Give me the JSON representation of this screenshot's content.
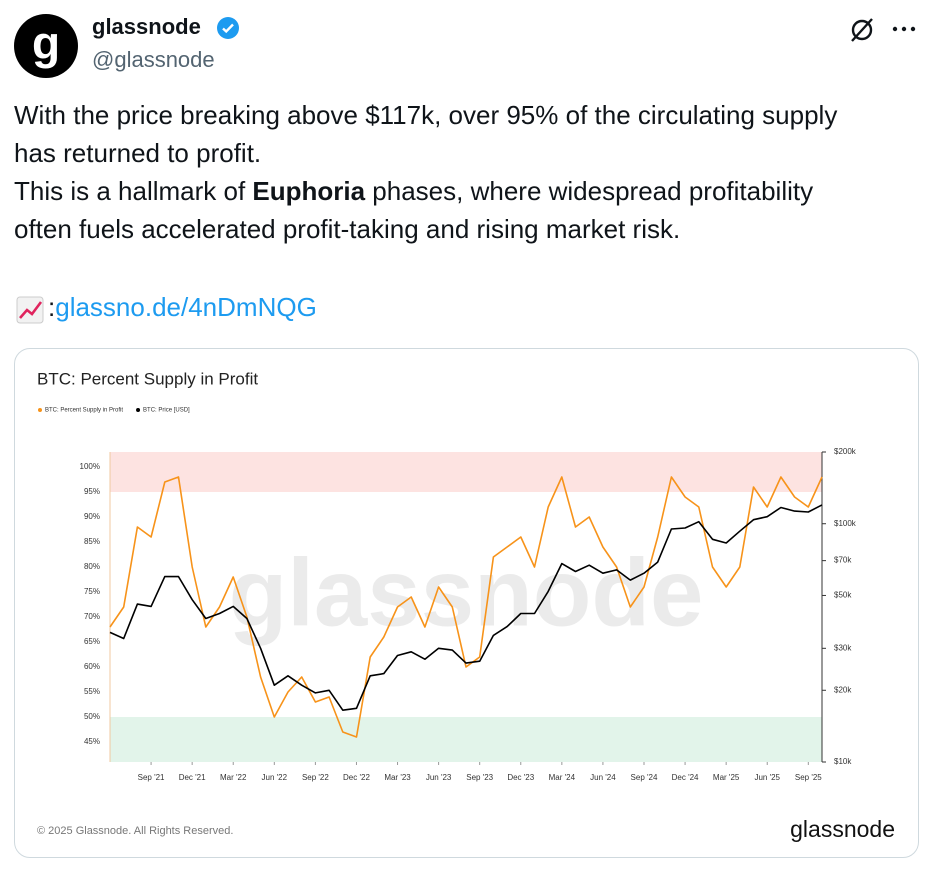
{
  "tweet": {
    "avatar_text": "g",
    "name": "glassnode",
    "handle": "@glassnode",
    "lines": [
      "With the price breaking above $117k, over 95% of the circulating supply",
      "has returned to profit."
    ],
    "line3_before": "This is a hallmark of ",
    "line3_bold": "Euphoria",
    "line3_after": " phases, where widespread profitability",
    "line4": "often fuels accelerated profit-taking and rising market risk.",
    "link_prefix": ":",
    "link": "glassno.de/4nDmNQG"
  },
  "chart_data": {
    "type": "line",
    "title": "BTC: Percent Supply in Profit",
    "watermark": "glassnode",
    "footer": "© 2025 Glassnode. All Rights Reserved.",
    "brand": "glassnode",
    "x": [
      "2021-06",
      "2021-07",
      "2021-08",
      "2021-09",
      "2021-10",
      "2021-11",
      "2021-12",
      "2022-01",
      "2022-02",
      "2022-03",
      "2022-04",
      "2022-05",
      "2022-06",
      "2022-07",
      "2022-08",
      "2022-09",
      "2022-10",
      "2022-11",
      "2022-12",
      "2023-01",
      "2023-02",
      "2023-03",
      "2023-04",
      "2023-05",
      "2023-06",
      "2023-07",
      "2023-08",
      "2023-09",
      "2023-10",
      "2023-11",
      "2023-12",
      "2024-01",
      "2024-02",
      "2024-03",
      "2024-04",
      "2024-05",
      "2024-06",
      "2024-07",
      "2024-08",
      "2024-09",
      "2024-10",
      "2024-11",
      "2024-12",
      "2025-01",
      "2025-02",
      "2025-03",
      "2025-04",
      "2025-05",
      "2025-06",
      "2025-07",
      "2025-08",
      "2025-09",
      "2025-10"
    ],
    "series": [
      {
        "name": "BTC: Percent Supply in Profit",
        "color": "#f7931a",
        "values": [
          68,
          72,
          88,
          86,
          97,
          98,
          80,
          68,
          72,
          78,
          70,
          58,
          50,
          55,
          58,
          53,
          54,
          47,
          46,
          62,
          66,
          72,
          74,
          68,
          76,
          72,
          60,
          62,
          82,
          84,
          86,
          80,
          92,
          98,
          88,
          90,
          84,
          80,
          72,
          76,
          86,
          98,
          94,
          92,
          80,
          76,
          80,
          96,
          92,
          98,
          94,
          92,
          98
        ]
      },
      {
        "name": "BTC: Price [USD]",
        "color": "#000000",
        "axis": "y2",
        "values": [
          35000,
          33000,
          46000,
          45000,
          60000,
          60000,
          48000,
          40000,
          42000,
          45000,
          40000,
          30000,
          21000,
          23000,
          21000,
          19500,
          20000,
          16500,
          16800,
          23000,
          23500,
          28000,
          29000,
          27000,
          30000,
          29500,
          26000,
          26500,
          34000,
          37000,
          42000,
          42000,
          52000,
          68000,
          63000,
          67000,
          62000,
          64000,
          58000,
          62000,
          69000,
          95000,
          96000,
          102000,
          86000,
          83000,
          93000,
          104000,
          107000,
          117000,
          113000,
          112000,
          120000
        ]
      }
    ],
    "xlim": [
      "2021-06",
      "2025-10"
    ],
    "xticks": [
      {
        "value": "2021-09",
        "label": "Sep '21"
      },
      {
        "value": "2021-12",
        "label": "Dec '21"
      },
      {
        "value": "2022-03",
        "label": "Mar '22"
      },
      {
        "value": "2022-06",
        "label": "Jun '22"
      },
      {
        "value": "2022-09",
        "label": "Sep '22"
      },
      {
        "value": "2022-12",
        "label": "Dec '22"
      },
      {
        "value": "2023-03",
        "label": "Mar '23"
      },
      {
        "value": "2023-06",
        "label": "Jun '23"
      },
      {
        "value": "2023-09",
        "label": "Sep '23"
      },
      {
        "value": "2023-12",
        "label": "Dec '23"
      },
      {
        "value": "2024-03",
        "label": "Mar '24"
      },
      {
        "value": "2024-06",
        "label": "Jun '24"
      },
      {
        "value": "2024-09",
        "label": "Sep '24"
      },
      {
        "value": "2024-12",
        "label": "Dec '24"
      },
      {
        "value": "2025-03",
        "label": "Mar '25"
      },
      {
        "value": "2025-06",
        "label": "Jun '25"
      },
      {
        "value": "2025-09",
        "label": "Sep '25"
      }
    ],
    "ylim": [
      41,
      103
    ],
    "yticks": [
      {
        "value": 45,
        "label": "45%"
      },
      {
        "value": 50,
        "label": "50%"
      },
      {
        "value": 55,
        "label": "55%"
      },
      {
        "value": 60,
        "label": "60%"
      },
      {
        "value": 65,
        "label": "65%"
      },
      {
        "value": 70,
        "label": "70%"
      },
      {
        "value": 75,
        "label": "75%"
      },
      {
        "value": 80,
        "label": "80%"
      },
      {
        "value": 85,
        "label": "85%"
      },
      {
        "value": 90,
        "label": "90%"
      },
      {
        "value": 95,
        "label": "95%"
      },
      {
        "value": 100,
        "label": "100%"
      }
    ],
    "y2lim": [
      10000,
      200000
    ],
    "y2_log": true,
    "y2ticks": [
      {
        "value": 10000,
        "label": "$10k"
      },
      {
        "value": 20000,
        "label": "$20k"
      },
      {
        "value": 30000,
        "label": "$30k"
      },
      {
        "value": 50000,
        "label": "$50k"
      },
      {
        "value": 70000,
        "label": "$70k"
      },
      {
        "value": 100000,
        "label": "$100k"
      },
      {
        "value": 200000,
        "label": "$200k"
      }
    ],
    "zones": [
      {
        "from": 95,
        "to": 103,
        "color": "#fde3e1"
      },
      {
        "from": 41,
        "to": 50,
        "color": "#e2f4ea"
      }
    ]
  }
}
